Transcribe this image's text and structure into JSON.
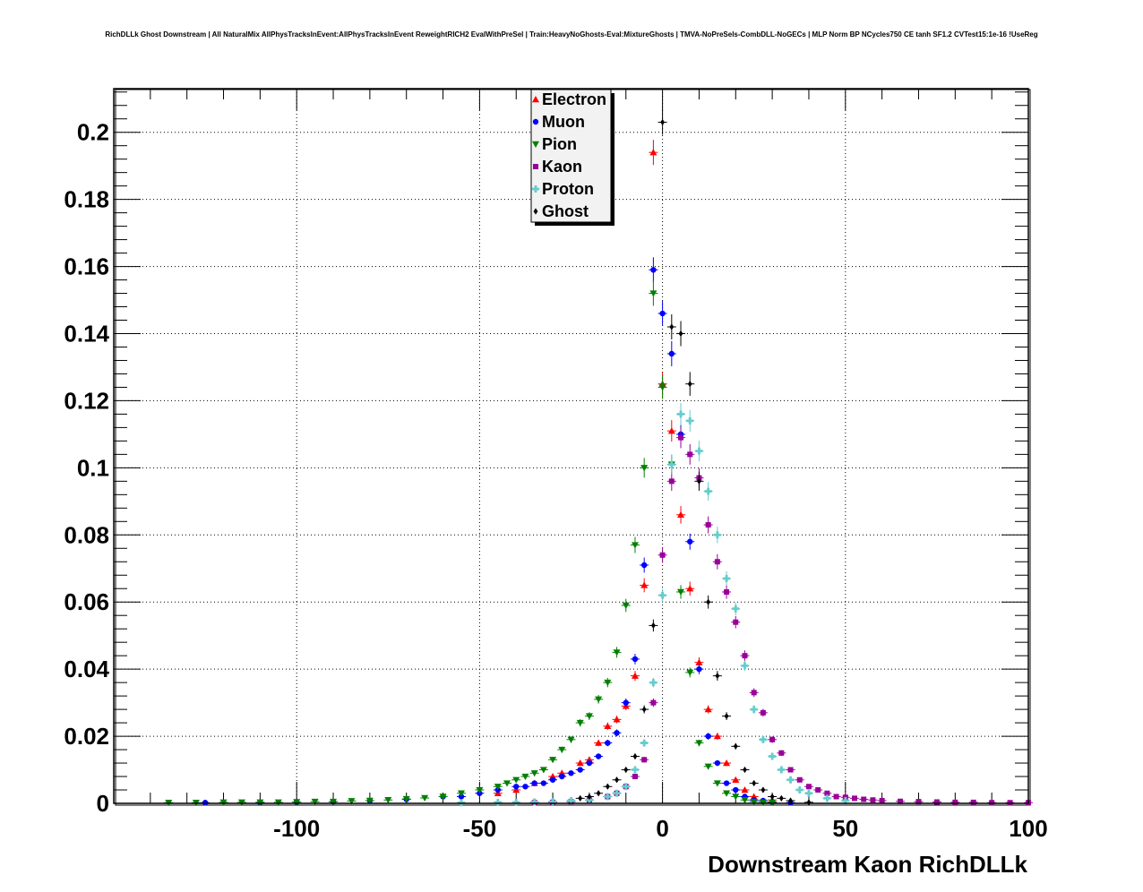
{
  "chart_data": {
    "type": "scatter",
    "title": "RichDLLk Ghost Downstream | All NaturalMix AllPhysTracksInEvent:AllPhysTracksInEvent ReweightRICH2 EvalWithPreSel | Train:HeavyNoGhosts-Eval:MixtureGhosts | TMVA-NoPreSels-CombDLL-NoGECs | MLP Norm BP NCycles750 CE tanh SF1.2 CVTest15:1e-16 !UseReg",
    "xlabel": "Downstream Kaon RichDLLk",
    "ylabel": "",
    "xlim": [
      -150,
      100
    ],
    "ylim": [
      0,
      0.213
    ],
    "grid": true,
    "legend_position": "top-center",
    "x_tick_labels": [
      "-100",
      "-50",
      "0",
      "50",
      "100"
    ],
    "y_tick_labels": [
      "0",
      "0.02",
      "0.04",
      "0.06",
      "0.08",
      "0.1",
      "0.12",
      "0.14",
      "0.16",
      "0.18",
      "0.2"
    ],
    "series": [
      {
        "name": "Electron",
        "color": "#ff0000",
        "marker": "triangle-up",
        "x": [
          -45,
          -40,
          -35,
          -30,
          -27.5,
          -22.5,
          -20,
          -17.5,
          -15,
          -12.5,
          -10,
          -7.5,
          -5,
          -2.5,
          0,
          2.5,
          5,
          7.5,
          10,
          12.5,
          15,
          17.5,
          20,
          22.5,
          25,
          30
        ],
        "y": [
          0.003,
          0.004,
          0.006,
          0.008,
          0.009,
          0.012,
          0.013,
          0.018,
          0.023,
          0.025,
          0.029,
          0.038,
          0.065,
          0.194,
          0.125,
          0.111,
          0.086,
          0.064,
          0.042,
          0.028,
          0.02,
          0.012,
          0.007,
          0.004,
          0.002,
          0.001
        ]
      },
      {
        "name": "Muon",
        "color": "#0000ff",
        "marker": "circle",
        "x": [
          -125,
          -110,
          -100,
          -90,
          -80,
          -70,
          -60,
          -55,
          -50,
          -45,
          -40,
          -37.5,
          -35,
          -32.5,
          -30,
          -27.5,
          -25,
          -22.5,
          -20,
          -17.5,
          -15,
          -12.5,
          -10,
          -7.5,
          -5,
          -2.5,
          0,
          2.5,
          5,
          7.5,
          10,
          12.5,
          15,
          17.5,
          20,
          22.5,
          25,
          27.5,
          30,
          35
        ],
        "y": [
          0.0002,
          0.0003,
          0.0004,
          0.0005,
          0.0008,
          0.0012,
          0.002,
          0.002,
          0.003,
          0.004,
          0.005,
          0.005,
          0.006,
          0.006,
          0.007,
          0.008,
          0.009,
          0.01,
          0.012,
          0.014,
          0.018,
          0.021,
          0.03,
          0.043,
          0.071,
          0.159,
          0.146,
          0.134,
          0.11,
          0.078,
          0.04,
          0.02,
          0.012,
          0.006,
          0.004,
          0.002,
          0.001,
          0.0008,
          0.0004,
          0.0002
        ]
      },
      {
        "name": "Pion",
        "color": "#008000",
        "marker": "triangle-down",
        "x": [
          -135,
          -127.5,
          -120,
          -115,
          -110,
          -105,
          -100,
          -95,
          -90,
          -85,
          -80,
          -75,
          -70,
          -65,
          -60,
          -55,
          -50,
          -45,
          -42.5,
          -40,
          -37.5,
          -35,
          -32.5,
          -30,
          -27.5,
          -25,
          -22.5,
          -20,
          -17.5,
          -15,
          -12.5,
          -10,
          -7.5,
          -5,
          -2.5,
          0,
          2.5,
          5,
          7.5,
          10,
          12.5,
          15,
          17.5,
          20,
          22.5,
          25,
          27.5,
          30
        ],
        "y": [
          0.0002,
          0.0002,
          0.0003,
          0.0003,
          0.0003,
          0.0003,
          0.0004,
          0.0005,
          0.0005,
          0.0007,
          0.0008,
          0.001,
          0.0013,
          0.0016,
          0.002,
          0.003,
          0.004,
          0.005,
          0.006,
          0.007,
          0.008,
          0.009,
          0.01,
          0.013,
          0.016,
          0.019,
          0.024,
          0.026,
          0.031,
          0.036,
          0.045,
          0.059,
          0.077,
          0.1,
          0.152,
          0.124,
          0.101,
          0.063,
          0.039,
          0.018,
          0.011,
          0.006,
          0.003,
          0.002,
          0.001,
          0.0005,
          0.0003,
          0.0002
        ]
      },
      {
        "name": "Kaon",
        "color": "#990099",
        "marker": "square",
        "x": [
          -35,
          -30,
          -25,
          -20,
          -15,
          -12.5,
          -10,
          -7.5,
          -5,
          -2.5,
          0,
          2.5,
          5,
          7.5,
          10,
          12.5,
          15,
          17.5,
          20,
          22.5,
          25,
          27.5,
          30,
          32.5,
          35,
          37.5,
          40,
          42.5,
          45,
          47.5,
          50,
          52.5,
          55,
          57.5,
          60,
          65,
          70,
          75,
          80,
          85,
          90,
          95,
          100
        ],
        "y": [
          0.0002,
          0.0003,
          0.0005,
          0.001,
          0.002,
          0.003,
          0.005,
          0.008,
          0.013,
          0.03,
          0.074,
          0.096,
          0.109,
          0.104,
          0.097,
          0.083,
          0.072,
          0.063,
          0.054,
          0.044,
          0.033,
          0.027,
          0.019,
          0.015,
          0.01,
          0.007,
          0.005,
          0.004,
          0.003,
          0.002,
          0.0018,
          0.0015,
          0.0012,
          0.001,
          0.0008,
          0.0006,
          0.0005,
          0.0004,
          0.0003,
          0.0003,
          0.0002,
          0.0002,
          0.0002
        ]
      },
      {
        "name": "Proton",
        "color": "#66cccc",
        "marker": "cross",
        "x": [
          -55,
          -45,
          -40,
          -35,
          -30,
          -25,
          -20,
          -15,
          -12.5,
          -10,
          -7.5,
          -5,
          -2.5,
          0,
          2.5,
          5,
          7.5,
          10,
          12.5,
          15,
          17.5,
          20,
          22.5,
          25,
          27.5,
          30,
          32.5,
          35,
          37.5,
          40,
          45,
          50
        ],
        "y": [
          0.0002,
          0.0003,
          0.0003,
          0.0004,
          0.0005,
          0.0008,
          0.001,
          0.002,
          0.003,
          0.005,
          0.01,
          0.018,
          0.036,
          0.062,
          0.101,
          0.116,
          0.114,
          0.105,
          0.093,
          0.08,
          0.067,
          0.058,
          0.041,
          0.028,
          0.019,
          0.014,
          0.01,
          0.007,
          0.004,
          0.003,
          0.0015,
          0.0008
        ]
      },
      {
        "name": "Ghost",
        "color": "#000000",
        "marker": "diamond",
        "x": [
          -22.5,
          -20,
          -17.5,
          -15,
          -12.5,
          -10,
          -7.5,
          -5,
          -2.5,
          0,
          2.5,
          5,
          7.5,
          10,
          12.5,
          15,
          17.5,
          20,
          22.5,
          25,
          27.5,
          30,
          32.5,
          35,
          40
        ],
        "y": [
          0.0015,
          0.002,
          0.003,
          0.005,
          0.007,
          0.01,
          0.014,
          0.028,
          0.053,
          0.203,
          0.142,
          0.14,
          0.125,
          0.096,
          0.06,
          0.038,
          0.026,
          0.017,
          0.01,
          0.006,
          0.004,
          0.002,
          0.0015,
          0.0008,
          0.0003
        ]
      }
    ]
  }
}
